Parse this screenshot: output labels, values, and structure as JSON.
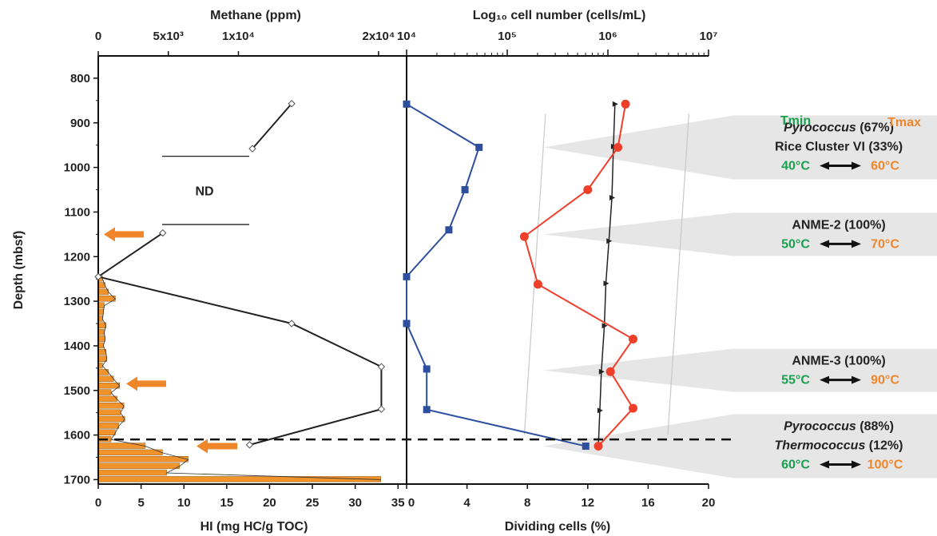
{
  "colors": {
    "axis": "#222222",
    "hi_fill": "#f0932b",
    "hi_line": "#333333",
    "methane": "#222222",
    "cell_blue": "#2e4f9e",
    "dividing_red": "#ef3e2a",
    "arrow": "#f0862a",
    "tmin": "#1aa050",
    "tmax": "#f0862a",
    "band": "#e6e6e6"
  },
  "chart_data": [
    {
      "type": "line",
      "title": "",
      "xlabel": "Methane (ppm)",
      "x_ticks": [
        "0",
        "5x10³",
        "1x10⁴",
        "2x10⁴"
      ],
      "xlim": [
        0,
        22000
      ],
      "ylabel": "Depth (mbsf)",
      "y_ticks": [
        "800",
        "900",
        "1000",
        "1100",
        "1200",
        "1300",
        "1400",
        "1500",
        "1600",
        "1700"
      ],
      "ylim": [
        750,
        1710
      ],
      "series": [
        {
          "style": "open-diamond",
          "points": [
            [
              13800,
              857
            ],
            [
              11000,
              958
            ],
            [
              4600,
              1147
            ],
            [
              0,
              1245
            ],
            [
              13800,
              1350
            ],
            [
              20200,
              1447
            ],
            [
              20200,
              1542
            ],
            [
              10800,
              1622
            ]
          ]
        }
      ],
      "annotations": [
        {
          "text": "ND",
          "depth_range": [
            975,
            1128
          ]
        }
      ]
    },
    {
      "type": "bar",
      "title": "",
      "xlabel": "HI (mg HC/g TOC)",
      "x_ticks": [
        "0",
        "5",
        "10",
        "15",
        "20",
        "25",
        "30",
        "35"
      ],
      "xlim": [
        0,
        36
      ],
      "orientation": "horizontal",
      "depth": [
        1250,
        1265,
        1280,
        1295,
        1310,
        1325,
        1340,
        1355,
        1370,
        1385,
        1400,
        1415,
        1430,
        1445,
        1460,
        1475,
        1490,
        1505,
        1520,
        1535,
        1550,
        1565,
        1580,
        1595,
        1610,
        1625,
        1640,
        1655,
        1670,
        1685,
        1700
      ],
      "values": [
        0.5,
        0.8,
        1.2,
        2.0,
        0.7,
        0.6,
        0.5,
        0.9,
        0.7,
        0.8,
        0.6,
        0.9,
        1.0,
        0.5,
        1.2,
        1.8,
        2.5,
        1.5,
        2.2,
        3.0,
        2.6,
        3.1,
        2.4,
        2.0,
        1.5,
        5.5,
        7.5,
        10.5,
        9.5,
        8.0,
        33.0
      ],
      "arrows_depth": [
        1150,
        1485,
        1625
      ]
    },
    {
      "type": "line",
      "title": "",
      "xlabel": "Log₁₀ cell number (cells/mL)",
      "x_ticks": [
        "10⁴",
        "10⁵",
        "10⁶",
        "10⁷"
      ],
      "xlim_log10": [
        4,
        7
      ],
      "series": [
        {
          "marker": "square",
          "color": "#2e4f9e",
          "points": [
            [
              4.0,
              858
            ],
            [
              4.72,
              955
            ],
            [
              4.58,
              1050
            ],
            [
              4.42,
              1140
            ],
            [
              4.0,
              1245
            ],
            [
              4.0,
              1350
            ],
            [
              4.2,
              1452
            ],
            [
              4.2,
              1543
            ],
            [
              5.78,
              1625
            ]
          ]
        }
      ]
    },
    {
      "type": "line",
      "title": "",
      "xlabel": "Dividing cells (%)",
      "x_ticks": [
        "0",
        "4",
        "8",
        "12",
        "16",
        "20"
      ],
      "xlim": [
        0,
        20
      ],
      "series": [
        {
          "marker": "circle",
          "color": "#ef3e2a",
          "points": [
            [
              14.5,
              858
            ],
            [
              14.0,
              955
            ],
            [
              12.0,
              1050
            ],
            [
              7.8,
              1155
            ],
            [
              8.7,
              1262
            ],
            [
              15.0,
              1385
            ],
            [
              13.5,
              1458
            ],
            [
              15.0,
              1540
            ],
            [
              12.7,
              1625
            ]
          ]
        },
        {
          "marker": "triangle",
          "color": "#222222",
          "points": [
            [
              13.8,
              858
            ],
            [
              13.7,
              953
            ],
            [
              13.6,
              1068
            ],
            [
              13.4,
              1165
            ],
            [
              13.2,
              1260
            ],
            [
              13.1,
              1355
            ],
            [
              12.9,
              1458
            ],
            [
              12.8,
              1545
            ],
            [
              12.7,
              1625
            ]
          ]
        }
      ],
      "guide_lines": [
        {
          "from": [
            9.2,
            880
          ],
          "to": [
            7.8,
            1600
          ]
        },
        {
          "from": [
            18.7,
            880
          ],
          "to": [
            17.3,
            1600
          ]
        }
      ]
    }
  ],
  "boundary_depth": 1610,
  "temperature_legend": {
    "tmin": "Tmin",
    "tmax": "Tmax"
  },
  "taxa_panels": [
    {
      "center_depth": 955,
      "lines": [
        {
          "parts": [
            {
              "text": "Pyrococcus",
              "italic": true
            },
            {
              "text": " (67%)"
            }
          ]
        },
        {
          "parts": [
            {
              "text": "Rice Cluster VI  (33%)"
            }
          ]
        }
      ],
      "tmin": "40°C",
      "tmax": "60°C"
    },
    {
      "center_depth": 1150,
      "lines": [
        {
          "parts": [
            {
              "text": "ANME-2  (100%)"
            }
          ]
        }
      ],
      "tmin": "50°C",
      "tmax": "70°C"
    },
    {
      "center_depth": 1455,
      "lines": [
        {
          "parts": [
            {
              "text": "ANME-3  (100%)"
            }
          ]
        }
      ],
      "tmin": "55°C",
      "tmax": "90°C"
    },
    {
      "center_depth": 1625,
      "lines": [
        {
          "parts": [
            {
              "text": "Pyrococcus",
              "italic": true
            },
            {
              "text": "  (88%)"
            }
          ]
        },
        {
          "parts": [
            {
              "text": "Thermococcus",
              "italic": true
            },
            {
              "text": "  (12%)"
            }
          ]
        }
      ],
      "tmin": "60°C",
      "tmax": "100°C"
    }
  ]
}
